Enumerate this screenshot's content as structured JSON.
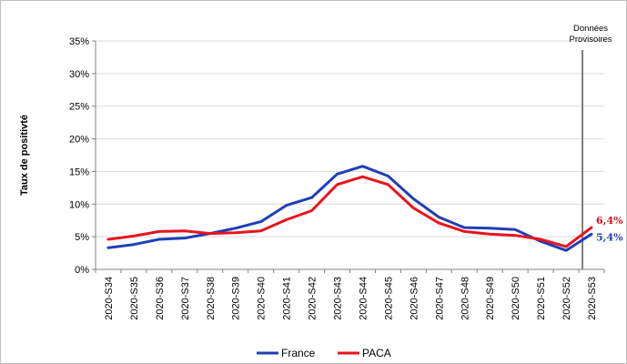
{
  "chart_data": {
    "type": "line",
    "title": "",
    "xlabel": "",
    "ylabel": "Taux de positivté",
    "ylim": [
      0,
      35
    ],
    "yticks": [
      "0%",
      "5%",
      "10%",
      "15%",
      "20%",
      "25%",
      "30%",
      "35%"
    ],
    "ytick_values": [
      0,
      5,
      10,
      15,
      20,
      25,
      30,
      35
    ],
    "categories": [
      "2020-S34",
      "2020-S35",
      "2020-S36",
      "2020-S37",
      "2020-S38",
      "2020-S39",
      "2020-S40",
      "2020-S41",
      "2020-S42",
      "2020-S43",
      "2020-S44",
      "2020-S45",
      "2020-S46",
      "2020-S47",
      "2020-S48",
      "2020-S49",
      "2020-S50",
      "2020-S51",
      "2020-S52",
      "2020-S53"
    ],
    "series": [
      {
        "name": "France",
        "color": "#1f3fb4",
        "values": [
          3.3,
          3.8,
          4.6,
          4.8,
          5.5,
          6.3,
          7.3,
          9.8,
          11.0,
          14.6,
          15.8,
          14.3,
          10.8,
          8.0,
          6.4,
          6.3,
          6.1,
          4.3,
          2.9,
          5.4
        ]
      },
      {
        "name": "PACA",
        "color": "#e8141c",
        "values": [
          4.6,
          5.1,
          5.8,
          5.9,
          5.5,
          5.6,
          5.9,
          7.6,
          9.0,
          13.0,
          14.2,
          13.0,
          9.4,
          7.1,
          5.8,
          5.4,
          5.2,
          4.6,
          3.5,
          6.4
        ]
      }
    ],
    "end_labels": [
      {
        "series": "PACA",
        "text": "6,4%",
        "color": "#d9141c"
      },
      {
        "series": "France",
        "text": "5,4%",
        "color": "#1f3fb4"
      }
    ],
    "annotation": {
      "line1": "Données",
      "line2": "Provisoires",
      "between": [
        "2020-S52",
        "2020-S53"
      ]
    },
    "legend": {
      "position": "bottom"
    },
    "grid": true
  }
}
